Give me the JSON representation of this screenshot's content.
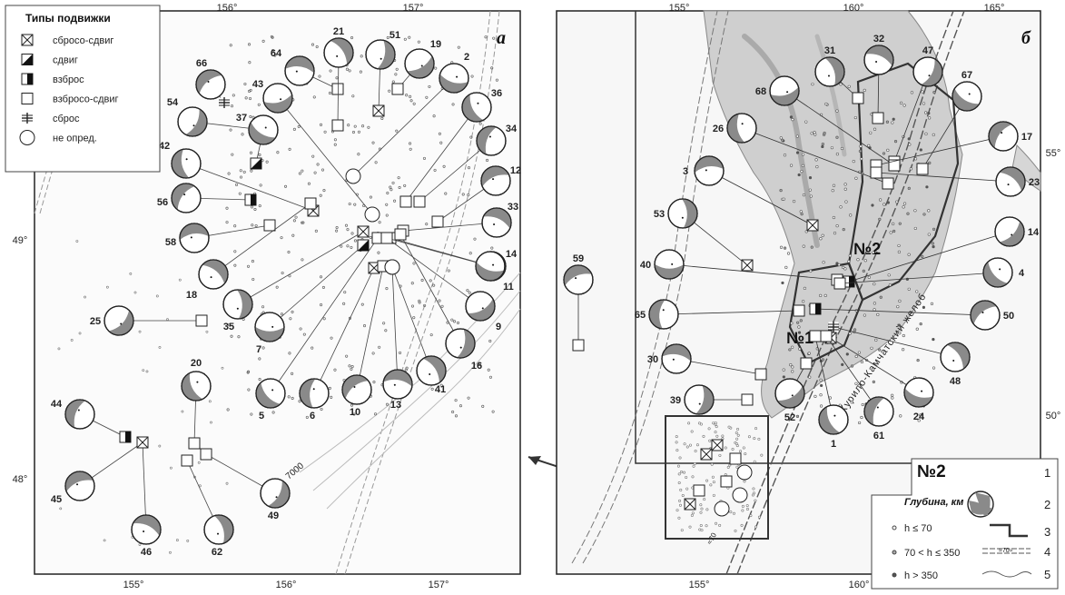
{
  "panel_a": {
    "letter": "а",
    "lon_ticks": [
      "156°",
      "157°"
    ],
    "lon_ticks_bottom": [
      "155°",
      "156°",
      "157°"
    ],
    "lat_ticks": [
      "49°",
      "48°"
    ],
    "depth_label": "7000",
    "legend": {
      "title": "Типы подвижки",
      "items": [
        {
          "icon": "cross-square-icon",
          "label": "сбросо-сдвиг"
        },
        {
          "icon": "half-triangle-square-icon",
          "label": "сдвиг"
        },
        {
          "icon": "half-filled-square-icon",
          "label": "взброс"
        },
        {
          "icon": "empty-square-icon",
          "label": "взбросо-сдвиг"
        },
        {
          "icon": "cross-icon",
          "label": "сброс"
        },
        {
          "icon": "circle-icon",
          "label": "не опред."
        }
      ]
    },
    "events": [
      "66",
      "64",
      "21",
      "51",
      "19",
      "2",
      "36",
      "34",
      "12",
      "33",
      "14",
      "54",
      "43",
      "37",
      "42",
      "56",
      "58",
      "18",
      "35",
      "25",
      "7",
      "5",
      "6",
      "10",
      "13",
      "41",
      "16",
      "9",
      "11",
      "20",
      "44",
      "45",
      "46",
      "62",
      "49"
    ]
  },
  "panel_b": {
    "letter": "б",
    "lon_ticks_top": [
      "155°",
      "160°",
      "165°"
    ],
    "lon_ticks_bottom": [
      "155°",
      "160°"
    ],
    "lat_ticks": [
      "55°",
      "50°"
    ],
    "zone_labels": [
      "№2",
      "№1"
    ],
    "trench_label": "Курило-Камчатский желоб",
    "contour_label": "≈70",
    "events": [
      "59",
      "32",
      "31",
      "47",
      "68",
      "67",
      "26",
      "17",
      "3",
      "23",
      "53",
      "14",
      "40",
      "4",
      "65",
      "50",
      "30",
      "48",
      "39",
      "52",
      "24",
      "1",
      "61"
    ],
    "legend": {
      "depth_title": "Глубина, км",
      "depth_items": [
        "h ≤ 70",
        "70 < h ≤ 350",
        "h > 350"
      ],
      "zone_sample": "№2",
      "numbers": [
        "1",
        "2",
        "3",
        "4",
        "5"
      ],
      "contour_sample": "≈70≈"
    }
  },
  "colors": {
    "mechanism_fill": "#8a8a8a",
    "coast_gray": "#cccccc",
    "frame": "#222222"
  }
}
